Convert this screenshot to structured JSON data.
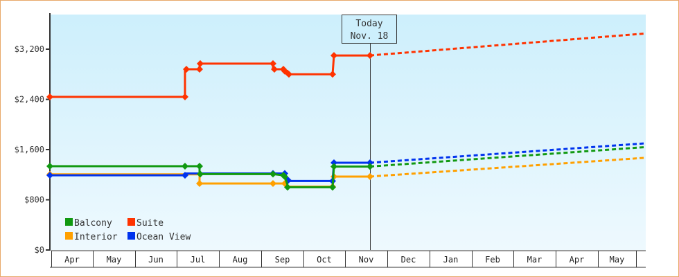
{
  "chart_data": {
    "type": "line",
    "title": "",
    "xlabel": "",
    "ylabel": "",
    "ylim": [
      0,
      3600
    ],
    "y_ticks": [
      {
        "value": 0,
        "label": "$0"
      },
      {
        "value": 800,
        "label": "$800"
      },
      {
        "value": 1600,
        "label": "$1,600"
      },
      {
        "value": 2400,
        "label": "$2,400"
      },
      {
        "value": 3200,
        "label": "$3,200"
      }
    ],
    "x_months": [
      "Apr",
      "May",
      "Jun",
      "Jul",
      "Aug",
      "Sep",
      "Oct",
      "Nov",
      "Dec",
      "Jan",
      "Feb",
      "Mar",
      "Apr",
      "May"
    ],
    "today_marker": {
      "line1": "Today",
      "line2": "Nov. 18"
    },
    "legend": [
      {
        "name": "Balcony",
        "color": "#119911"
      },
      {
        "name": "Suite",
        "color": "#ff3300"
      },
      {
        "name": "Interior",
        "color": "#ffa000"
      },
      {
        "name": "Ocean View",
        "color": "#0033ee"
      }
    ],
    "series": [
      {
        "name": "Suite",
        "color": "#ff3300",
        "history": [
          [
            71,
            2440
          ],
          [
            266,
            2440
          ],
          [
            266,
            2880
          ],
          [
            287,
            2880
          ],
          [
            287,
            2970
          ],
          [
            393,
            2970
          ],
          [
            393,
            2880
          ],
          [
            408,
            2880
          ],
          [
            410,
            2840
          ],
          [
            414,
            2820
          ],
          [
            416,
            2800
          ],
          [
            479,
            2800
          ],
          [
            481,
            3100
          ],
          [
            533,
            3100
          ]
        ],
        "markers": [
          [
            71,
            2440
          ],
          [
            266,
            2440
          ],
          [
            268,
            2880
          ],
          [
            287,
            2880
          ],
          [
            288,
            2970
          ],
          [
            393,
            2970
          ],
          [
            395,
            2880
          ],
          [
            408,
            2880
          ],
          [
            410,
            2850
          ],
          [
            414,
            2820
          ],
          [
            416,
            2800
          ],
          [
            479,
            2800
          ],
          [
            481,
            3100
          ],
          [
            533,
            3100
          ]
        ],
        "projection": [
          [
            533,
            3100
          ],
          [
            931,
            3450
          ]
        ]
      },
      {
        "name": "Interior",
        "color": "#ffa000",
        "history": [
          [
            71,
            1205
          ],
          [
            266,
            1205
          ],
          [
            287,
            1205
          ],
          [
            287,
            1060
          ],
          [
            393,
            1060
          ],
          [
            410,
            1060
          ],
          [
            413,
            1010
          ],
          [
            479,
            1010
          ],
          [
            481,
            1170
          ],
          [
            533,
            1170
          ]
        ],
        "markers": [
          [
            71,
            1205
          ],
          [
            287,
            1060
          ],
          [
            393,
            1060
          ],
          [
            410,
            1060
          ],
          [
            479,
            1010
          ],
          [
            481,
            1170
          ],
          [
            533,
            1170
          ]
        ],
        "projection": [
          [
            533,
            1170
          ],
          [
            931,
            1470
          ]
        ]
      },
      {
        "name": "Ocean View",
        "color": "#0033ee",
        "history": [
          [
            71,
            1190
          ],
          [
            266,
            1190
          ],
          [
            266,
            1220
          ],
          [
            287,
            1220
          ],
          [
            393,
            1220
          ],
          [
            410,
            1220
          ],
          [
            415,
            1100
          ],
          [
            479,
            1100
          ],
          [
            481,
            1390
          ],
          [
            533,
            1390
          ]
        ],
        "markers": [
          [
            71,
            1190
          ],
          [
            266,
            1190
          ],
          [
            393,
            1220
          ],
          [
            410,
            1220
          ],
          [
            415,
            1110
          ],
          [
            479,
            1100
          ],
          [
            481,
            1390
          ],
          [
            533,
            1390
          ]
        ],
        "projection": [
          [
            533,
            1390
          ],
          [
            931,
            1700
          ]
        ]
      },
      {
        "name": "Balcony",
        "color": "#119911",
        "history": [
          [
            71,
            1335
          ],
          [
            266,
            1335
          ],
          [
            287,
            1335
          ],
          [
            287,
            1210
          ],
          [
            393,
            1210
          ],
          [
            408,
            1190
          ],
          [
            410,
            1170
          ],
          [
            415,
            1000
          ],
          [
            479,
            1000
          ],
          [
            481,
            1330
          ],
          [
            533,
            1330
          ]
        ],
        "markers": [
          [
            71,
            1335
          ],
          [
            266,
            1335
          ],
          [
            287,
            1335
          ],
          [
            288,
            1210
          ],
          [
            393,
            1210
          ],
          [
            408,
            1190
          ],
          [
            410,
            1170
          ],
          [
            414,
            1000
          ],
          [
            479,
            1000
          ],
          [
            481,
            1330
          ],
          [
            533,
            1330
          ]
        ],
        "projection": [
          [
            533,
            1330
          ],
          [
            931,
            1640
          ]
        ]
      }
    ]
  }
}
